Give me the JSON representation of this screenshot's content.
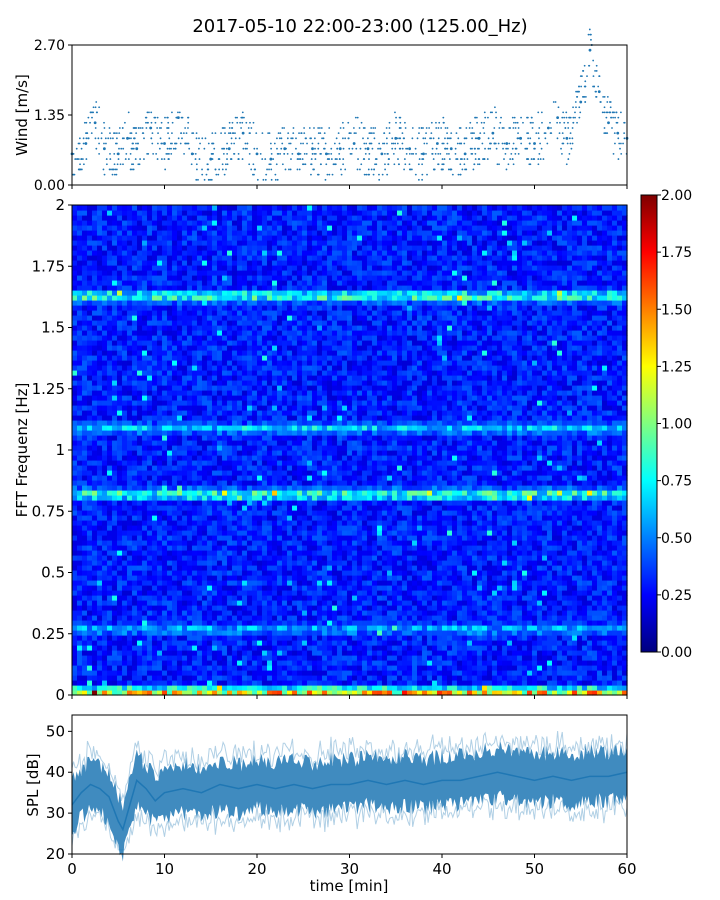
{
  "title": "2017-05-10 22:00-23:00 (125.00_Hz)",
  "colors": {
    "wind_dots": "#1f77b4",
    "spl_line": "#1f77b4"
  },
  "chart_data": [
    {
      "id": "wind",
      "type": "scatter",
      "ylabel": "Wind [m/s]",
      "xlabel": "",
      "xlim": [
        0,
        60
      ],
      "ylim": [
        0,
        2.7
      ],
      "yticks": [
        0.0,
        1.35,
        2.7
      ],
      "ytick_labels": [
        "0.00",
        "1.35",
        "2.70"
      ],
      "series": [
        {
          "x": [
            0,
            1.5,
            2.5,
            3.5,
            5,
            6,
            7,
            8.5,
            10,
            11.5,
            13,
            15,
            17,
            18.5,
            20,
            21.5,
            23,
            24.5,
            26,
            27.5,
            29,
            30.5,
            32,
            33.5,
            35,
            36.5,
            38,
            39.5,
            41,
            42.5,
            44,
            45.5,
            47,
            48.5,
            50,
            51.5,
            52.5,
            53.5,
            55,
            56,
            57,
            58,
            59,
            60
          ],
          "y": [
            0.6,
            0.8,
            1.2,
            0.7,
            0.6,
            0.9,
            0.7,
            1.1,
            0.8,
            1.3,
            0.6,
            0.5,
            0.7,
            1.0,
            0.6,
            0.5,
            0.7,
            0.6,
            0.7,
            0.6,
            0.7,
            0.8,
            0.7,
            0.6,
            0.9,
            0.7,
            0.6,
            0.8,
            0.7,
            0.6,
            0.9,
            1.0,
            0.8,
            0.9,
            0.8,
            1.1,
            1.3,
            0.9,
            1.6,
            2.6,
            1.8,
            1.2,
            1.0,
            0.9
          ]
        }
      ]
    },
    {
      "id": "spectrogram",
      "type": "heatmap",
      "ylabel": "FFT Frequenz [Hz]",
      "xlabel": "",
      "xlim": [
        0,
        60
      ],
      "ylim": [
        0,
        2
      ],
      "yticks": [
        0,
        0.25,
        0.5,
        0.75,
        1,
        1.25,
        1.5,
        1.75,
        2
      ],
      "ytick_labels": [
        "0",
        "0.25",
        "0.5",
        "0.75",
        "1",
        "1.25",
        "1.5",
        "1.75",
        "2"
      ],
      "colormap": "jet",
      "colorbar": {
        "vmin": 0,
        "vmax": 2,
        "ticks": [
          0.0,
          0.25,
          0.5,
          0.75,
          1.0,
          1.25,
          1.5,
          1.75,
          2.0
        ],
        "tick_labels": [
          "0.00",
          "0.25",
          "0.50",
          "0.75",
          "1.00",
          "1.25",
          "1.50",
          "1.75",
          "2.00"
        ]
      },
      "background_level": 0.3,
      "bands": [
        {
          "freq": 0.01,
          "level": 1.4
        },
        {
          "freq": 0.27,
          "level": 0.7
        },
        {
          "freq": 0.82,
          "level": 1.0
        },
        {
          "freq": 1.09,
          "level": 0.75
        },
        {
          "freq": 1.63,
          "level": 1.0
        }
      ]
    },
    {
      "id": "spl",
      "type": "line",
      "ylabel": "SPL [dB]",
      "xlabel": "time [min]",
      "xlim": [
        0,
        60
      ],
      "ylim": [
        20,
        54
      ],
      "yticks": [
        20,
        30,
        40,
        50
      ],
      "ytick_labels": [
        "20",
        "30",
        "40",
        "50"
      ],
      "xticks": [
        0,
        10,
        20,
        30,
        40,
        50,
        60
      ],
      "xtick_labels": [
        "0",
        "10",
        "20",
        "30",
        "40",
        "50",
        "60"
      ],
      "series": [
        {
          "x": [
            0,
            1,
            2,
            3,
            4,
            5,
            5.5,
            6,
            7,
            8,
            9,
            10,
            12,
            14,
            16,
            18,
            20,
            22,
            24,
            26,
            28,
            30,
            32,
            34,
            36,
            38,
            40,
            42,
            44,
            46,
            48,
            50,
            52,
            54,
            56,
            58,
            60
          ],
          "y": [
            32,
            35,
            37,
            36,
            34,
            28,
            26,
            30,
            38,
            36,
            33,
            35,
            36,
            35,
            37,
            36,
            37,
            36,
            37,
            36,
            37,
            37,
            38,
            37,
            38,
            37,
            38,
            38,
            39,
            40,
            39,
            38,
            39,
            38,
            39,
            39,
            40
          ]
        }
      ]
    }
  ]
}
